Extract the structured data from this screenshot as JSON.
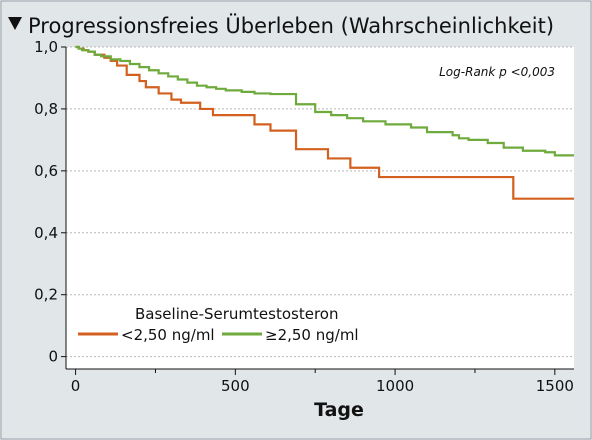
{
  "header": {
    "triangle_icon": "down-triangle-icon",
    "title": "Progressionsfreies Überleben (Wahrscheinlichkeit)"
  },
  "colors": {
    "background": "#e1e6e9",
    "plot_background": "#ffffff",
    "series_low": "#d2601f",
    "series_high": "#6eaa3c",
    "grid": "#b8b8b8"
  },
  "chart_data": {
    "type": "line",
    "subtype": "kaplan-meier-step",
    "title": "Progressionsfreies Überleben (Wahrscheinlichkeit)",
    "xlabel": "Tage",
    "ylabel": "",
    "xlim": [
      -30,
      1560
    ],
    "ylim": [
      -0.04,
      1.0
    ],
    "x_ticks": [
      0,
      500,
      1000,
      1500
    ],
    "x_tick_labels": [
      "0",
      "500",
      "1000",
      "1500"
    ],
    "y_ticks": [
      0,
      0.2,
      0.4,
      0.6,
      0.8,
      1.0
    ],
    "y_tick_labels": [
      "0",
      "0,2",
      "0,4",
      "0,6",
      "0,8",
      "1,0"
    ],
    "grid": "horizontal dotted",
    "annotation": "Log-Rank p <0,003",
    "annotation_position": "top-right",
    "legend_title": "Baseline-Serumtestosteron",
    "legend_position": "bottom-left",
    "series": [
      {
        "name": "<2,50 ng/ml",
        "color": "#d2601f",
        "x": [
          0,
          10,
          25,
          40,
          60,
          90,
          110,
          130,
          160,
          200,
          220,
          260,
          300,
          330,
          390,
          430,
          480,
          560,
          610,
          690,
          730,
          790,
          860,
          950,
          1000,
          1080,
          1150,
          1370,
          1560
        ],
        "y": [
          1.0,
          0.995,
          0.99,
          0.985,
          0.975,
          0.965,
          0.955,
          0.94,
          0.91,
          0.89,
          0.87,
          0.85,
          0.83,
          0.82,
          0.8,
          0.78,
          0.78,
          0.75,
          0.73,
          0.67,
          0.67,
          0.64,
          0.61,
          0.58,
          0.58,
          0.58,
          0.58,
          0.51,
          0.51
        ]
      },
      {
        "name": "≥2,50 ng/ml",
        "color": "#6eaa3c",
        "x": [
          0,
          10,
          20,
          40,
          60,
          80,
          110,
          140,
          170,
          200,
          230,
          260,
          290,
          320,
          350,
          380,
          410,
          440,
          470,
          520,
          560,
          610,
          690,
          750,
          800,
          850,
          900,
          970,
          1050,
          1100,
          1180,
          1200,
          1230,
          1290,
          1340,
          1400,
          1470,
          1500,
          1560
        ],
        "y": [
          1.0,
          0.995,
          0.99,
          0.985,
          0.975,
          0.97,
          0.96,
          0.955,
          0.945,
          0.935,
          0.925,
          0.915,
          0.905,
          0.895,
          0.885,
          0.875,
          0.87,
          0.865,
          0.86,
          0.855,
          0.85,
          0.848,
          0.815,
          0.79,
          0.78,
          0.77,
          0.76,
          0.75,
          0.74,
          0.725,
          0.715,
          0.705,
          0.7,
          0.69,
          0.675,
          0.665,
          0.66,
          0.65,
          0.65
        ]
      }
    ]
  }
}
